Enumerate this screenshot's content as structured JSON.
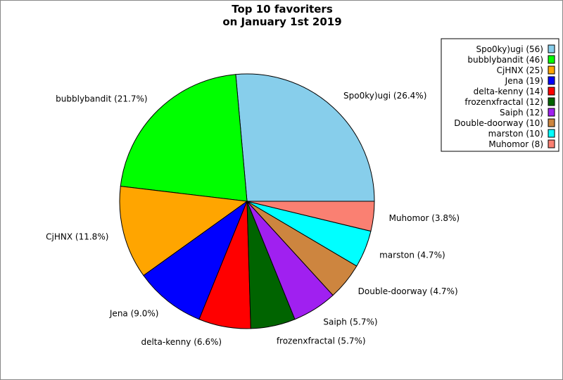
{
  "chart_data": {
    "type": "pie",
    "title": [
      "Top 10 favoriters",
      "on January 1st 2019"
    ],
    "legend_position": "top-right",
    "slices": [
      {
        "name": "Spo0ky)ugi",
        "value": 56,
        "percent": "26.4%",
        "color": "#87ceeb"
      },
      {
        "name": "bubblybandit",
        "value": 46,
        "percent": "21.7%",
        "color": "#00ff00"
      },
      {
        "name": "CjHNX",
        "value": 25,
        "percent": "11.8%",
        "color": "#ffa500"
      },
      {
        "name": "Jena",
        "value": 19,
        "percent": "9.0%",
        "color": "#0000ff"
      },
      {
        "name": "delta-kenny",
        "value": 14,
        "percent": "6.6%",
        "color": "#ff0000"
      },
      {
        "name": "frozenxfractal",
        "value": 12,
        "percent": "5.7%",
        "color": "#006400"
      },
      {
        "name": "Saiph",
        "value": 12,
        "percent": "5.7%",
        "color": "#a020f0"
      },
      {
        "name": "Double-doorway",
        "value": 10,
        "percent": "4.7%",
        "color": "#cd853f"
      },
      {
        "name": "marston",
        "value": 10,
        "percent": "4.7%",
        "color": "#00ffff"
      },
      {
        "name": "Muhomor",
        "value": 8,
        "percent": "3.8%",
        "color": "#fa8072"
      }
    ]
  }
}
